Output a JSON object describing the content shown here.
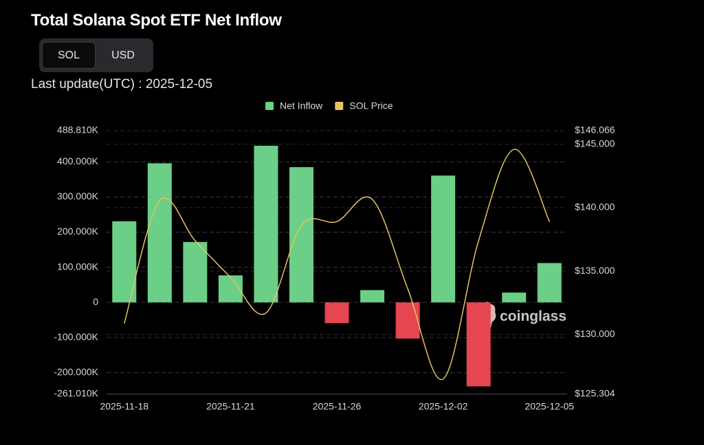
{
  "controls": {
    "tabs": [
      "SOL",
      "USD"
    ],
    "active_tab": 0,
    "last_update": "Last update(UTC) : 2025-12-05",
    "watermark": "coinglass"
  },
  "chart_data": {
    "type": "bar-line",
    "title": "Total Solana Spot ETF Net Inflow",
    "categories": [
      "2025-11-18",
      null,
      null,
      "2025-11-21",
      null,
      null,
      "2025-11-26",
      null,
      null,
      "2025-12-02",
      null,
      null,
      "2025-12-05"
    ],
    "series": [
      {
        "name": "Net Inflow",
        "type": "bar",
        "color": "#6ccf87",
        "negative_color": "#e5464f",
        "values": [
          231000,
          396000,
          172000,
          77000,
          446000,
          385000,
          -59000,
          35000,
          -103000,
          361000,
          -239000,
          28000,
          112000
        ]
      },
      {
        "name": "SOL Price",
        "type": "line",
        "axis": "y2",
        "color": "#e8c262",
        "values": [
          130.87,
          140.54,
          137.4,
          134.5,
          131.7,
          138.6,
          138.9,
          140.65,
          133.6,
          126.5,
          137.4,
          144.6,
          138.9
        ]
      }
    ],
    "ylim": [
      -261010,
      488810
    ],
    "yticks": [
      {
        "value": -261010,
        "label": "-261.010K"
      },
      {
        "value": -200000,
        "label": "-200.000K"
      },
      {
        "value": -100000,
        "label": "-100.000K"
      },
      0,
      {
        "value": 100000,
        "label": "100.000K"
      },
      {
        "value": 200000,
        "label": "200.000K"
      },
      {
        "value": 300000,
        "label": "300.000K"
      },
      {
        "value": 400000,
        "label": "400.000K"
      },
      {
        "value": 488810,
        "label": "488.810K"
      }
    ],
    "y2lim": [
      125.304,
      146.066
    ],
    "y2ticks": [
      {
        "value": 125.304,
        "label": "$125.304"
      },
      {
        "value": 130,
        "label": "$130.000"
      },
      {
        "value": 135,
        "label": "$135.000"
      },
      {
        "value": 140,
        "label": "$140.000"
      },
      {
        "value": 145,
        "label": "$145.000"
      },
      {
        "value": 146.066,
        "label": "$146.066"
      }
    ],
    "grid": true,
    "legend": "top"
  }
}
